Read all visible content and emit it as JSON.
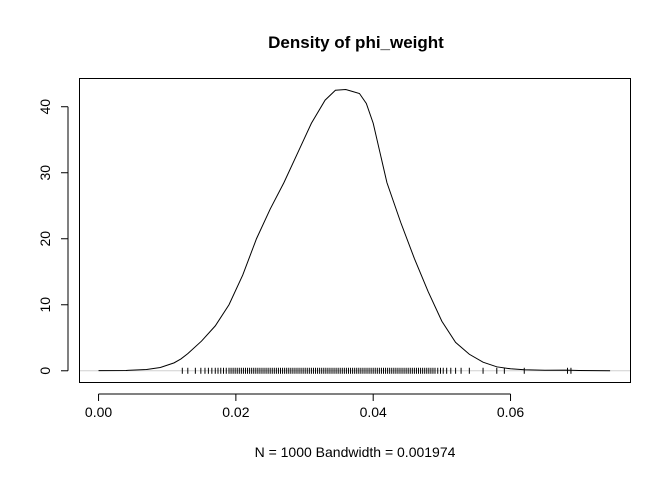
{
  "chart_data": {
    "type": "line",
    "title": "Density of phi_weight",
    "xlabel": "N = 1000   Bandwidth = 0.001974",
    "ylabel": "",
    "xlim": [
      -0.0027,
      0.0774
    ],
    "ylim": [
      -1.7,
      44.2
    ],
    "x_ticks": [
      0.0,
      0.02,
      0.04,
      0.06
    ],
    "x_tick_labels": [
      "0.00",
      "0.02",
      "0.04",
      "0.06"
    ],
    "y_ticks": [
      0,
      10,
      20,
      30,
      40
    ],
    "y_tick_labels": [
      "0",
      "10",
      "20",
      "30",
      "40"
    ],
    "grid": false,
    "series": [
      {
        "x": [
          0.0,
          0.004,
          0.007,
          0.009,
          0.011,
          0.012,
          0.013,
          0.015,
          0.017,
          0.019,
          0.021,
          0.023,
          0.025,
          0.027,
          0.029,
          0.031,
          0.033,
          0.0345,
          0.036,
          0.037,
          0.038,
          0.039,
          0.04,
          0.041,
          0.042,
          0.044,
          0.046,
          0.048,
          0.05,
          0.052,
          0.054,
          0.056,
          0.058,
          0.06,
          0.062,
          0.065,
          0.068,
          0.07,
          0.0745
        ],
        "y": [
          0.02,
          0.05,
          0.2,
          0.5,
          1.2,
          1.8,
          2.6,
          4.5,
          6.8,
          10.0,
          14.5,
          20.0,
          24.5,
          28.5,
          33.0,
          37.5,
          41.0,
          42.5,
          42.6,
          42.3,
          42.0,
          40.5,
          37.5,
          33.0,
          28.5,
          22.5,
          17.0,
          12.0,
          7.5,
          4.3,
          2.5,
          1.3,
          0.6,
          0.3,
          0.15,
          0.08,
          0.1,
          0.04,
          0.01
        ]
      }
    ],
    "rug": [
      0.0122,
      0.013,
      0.0141,
      0.0149,
      0.0155,
      0.016,
      0.0165,
      0.017,
      0.0174,
      0.0178,
      0.0182,
      0.0186,
      0.019,
      0.0193,
      0.0196,
      0.0199,
      0.0202,
      0.0205,
      0.0208,
      0.0211,
      0.0214,
      0.0217,
      0.022,
      0.0223,
      0.0226,
      0.0229,
      0.0232,
      0.0235,
      0.0238,
      0.0241,
      0.0244,
      0.0247,
      0.025,
      0.0253,
      0.0256,
      0.0259,
      0.0262,
      0.0265,
      0.0268,
      0.0271,
      0.0274,
      0.0277,
      0.028,
      0.0283,
      0.0286,
      0.0289,
      0.0292,
      0.0295,
      0.0298,
      0.0301,
      0.0304,
      0.0307,
      0.031,
      0.0313,
      0.0316,
      0.0319,
      0.0322,
      0.0325,
      0.0328,
      0.0331,
      0.0334,
      0.0337,
      0.034,
      0.0343,
      0.0346,
      0.0349,
      0.0352,
      0.0355,
      0.0358,
      0.0361,
      0.0364,
      0.0367,
      0.037,
      0.0373,
      0.0376,
      0.0379,
      0.0382,
      0.0385,
      0.0388,
      0.0391,
      0.0394,
      0.0397,
      0.04,
      0.0403,
      0.0406,
      0.0409,
      0.0412,
      0.0415,
      0.0418,
      0.0421,
      0.0424,
      0.0427,
      0.043,
      0.0433,
      0.0436,
      0.0439,
      0.0442,
      0.0445,
      0.0448,
      0.0451,
      0.0454,
      0.0457,
      0.046,
      0.0463,
      0.0466,
      0.0469,
      0.0472,
      0.0475,
      0.0478,
      0.0481,
      0.0484,
      0.0487,
      0.049,
      0.0494,
      0.0498,
      0.0502,
      0.0507,
      0.0513,
      0.052,
      0.0528,
      0.054,
      0.056,
      0.058,
      0.0591,
      0.062,
      0.0683,
      0.0688
    ]
  }
}
